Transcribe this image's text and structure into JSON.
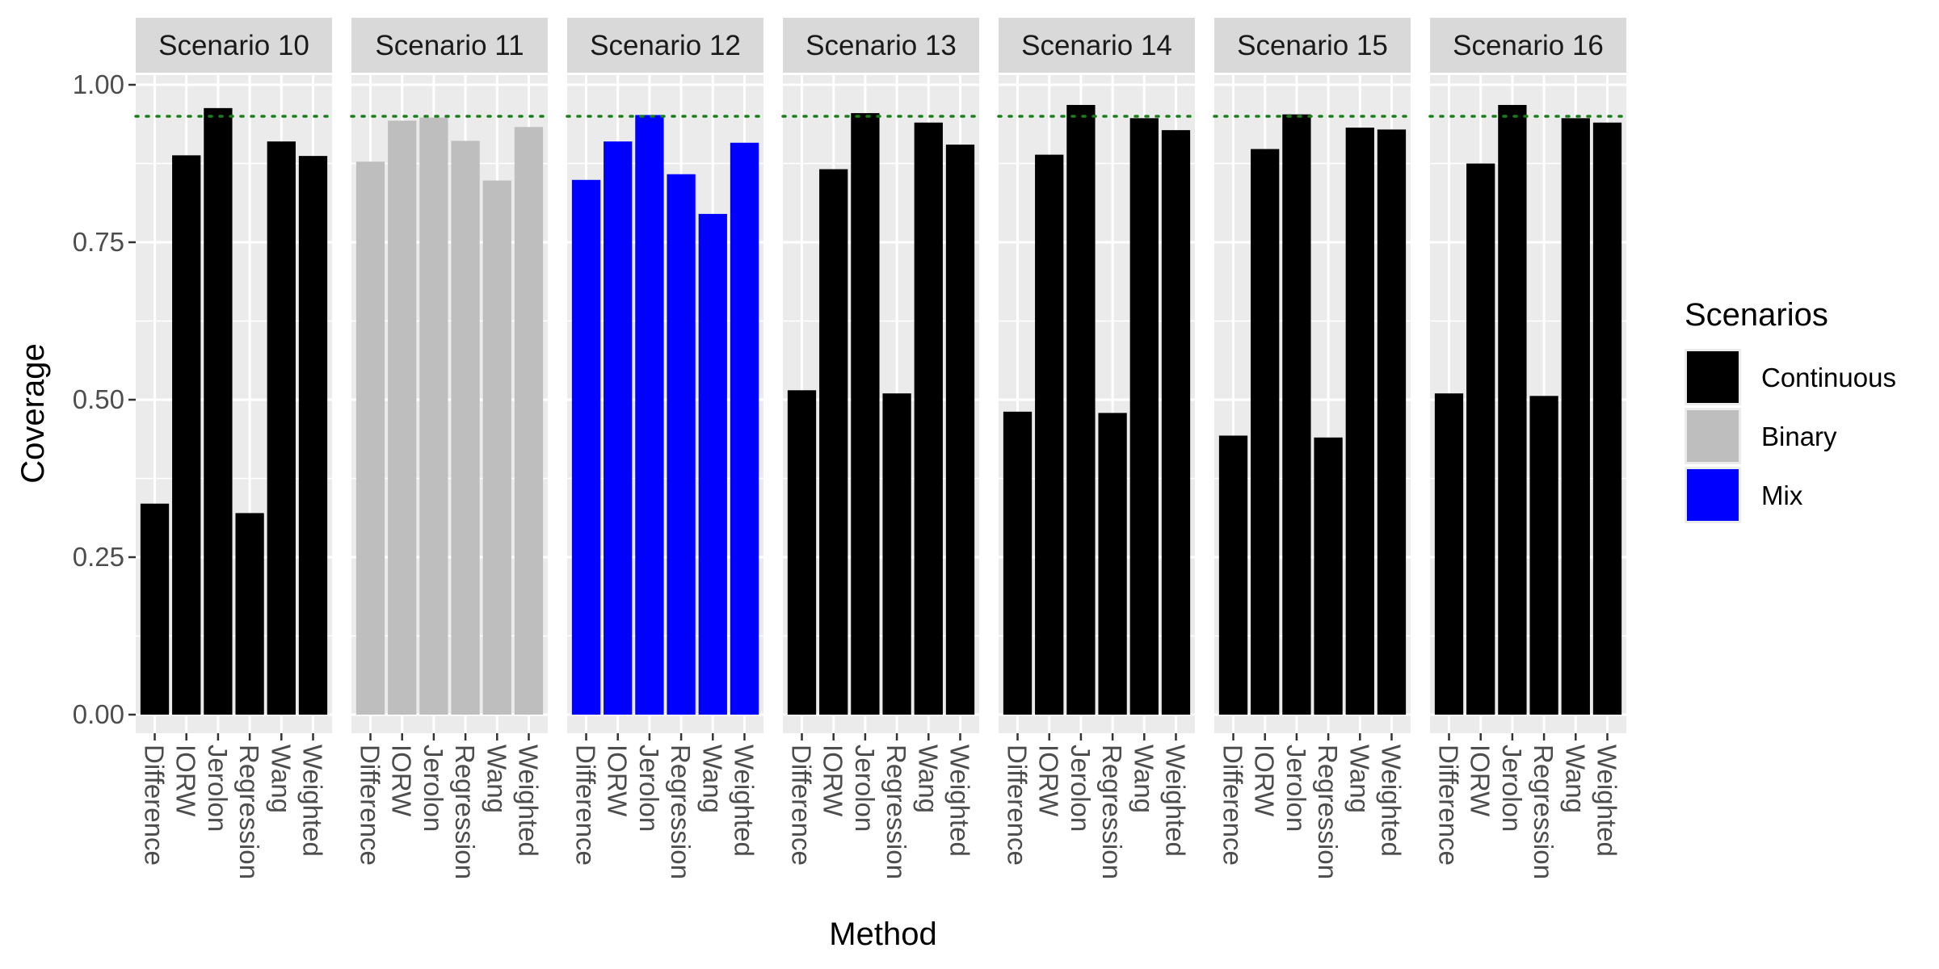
{
  "chart_data": {
    "type": "bar",
    "facet_by": "scenario",
    "xlabel": "Method",
    "ylabel": "Coverage",
    "ylim": [
      0,
      1.0
    ],
    "yticks": [
      0.0,
      0.25,
      0.5,
      0.75,
      1.0
    ],
    "ytick_labels": [
      "0.00",
      "0.25",
      "0.50",
      "0.75",
      "1.00"
    ],
    "reference_line": {
      "y": 0.95,
      "style": "dotted",
      "color": "#1a7f1a"
    },
    "categories": [
      "Difference",
      "IORW",
      "Jerolon",
      "Regression",
      "Wang",
      "Weighted"
    ],
    "legend": {
      "title": "Scenarios",
      "placement": "right",
      "items": [
        {
          "label": "Continuous",
          "color": "#000000"
        },
        {
          "label": "Binary",
          "color": "#bebebe"
        },
        {
          "label": "Mix",
          "color": "#0000ff"
        }
      ]
    },
    "panels": [
      {
        "label": "Scenario 10",
        "group": "Continuous",
        "values": [
          0.335,
          0.888,
          0.963,
          0.32,
          0.91,
          0.887
        ]
      },
      {
        "label": "Scenario 11",
        "group": "Binary",
        "values": [
          0.878,
          0.943,
          0.948,
          0.911,
          0.848,
          0.933
        ]
      },
      {
        "label": "Scenario 12",
        "group": "Mix",
        "values": [
          0.849,
          0.91,
          0.952,
          0.858,
          0.795,
          0.908
        ]
      },
      {
        "label": "Scenario 13",
        "group": "Continuous",
        "values": [
          0.515,
          0.866,
          0.955,
          0.51,
          0.94,
          0.905
        ]
      },
      {
        "label": "Scenario 14",
        "group": "Continuous",
        "values": [
          0.481,
          0.889,
          0.968,
          0.479,
          0.947,
          0.928
        ]
      },
      {
        "label": "Scenario 15",
        "group": "Continuous",
        "values": [
          0.443,
          0.898,
          0.953,
          0.44,
          0.932,
          0.929
        ]
      },
      {
        "label": "Scenario 16",
        "group": "Continuous",
        "values": [
          0.51,
          0.875,
          0.968,
          0.506,
          0.947,
          0.94
        ]
      }
    ]
  }
}
